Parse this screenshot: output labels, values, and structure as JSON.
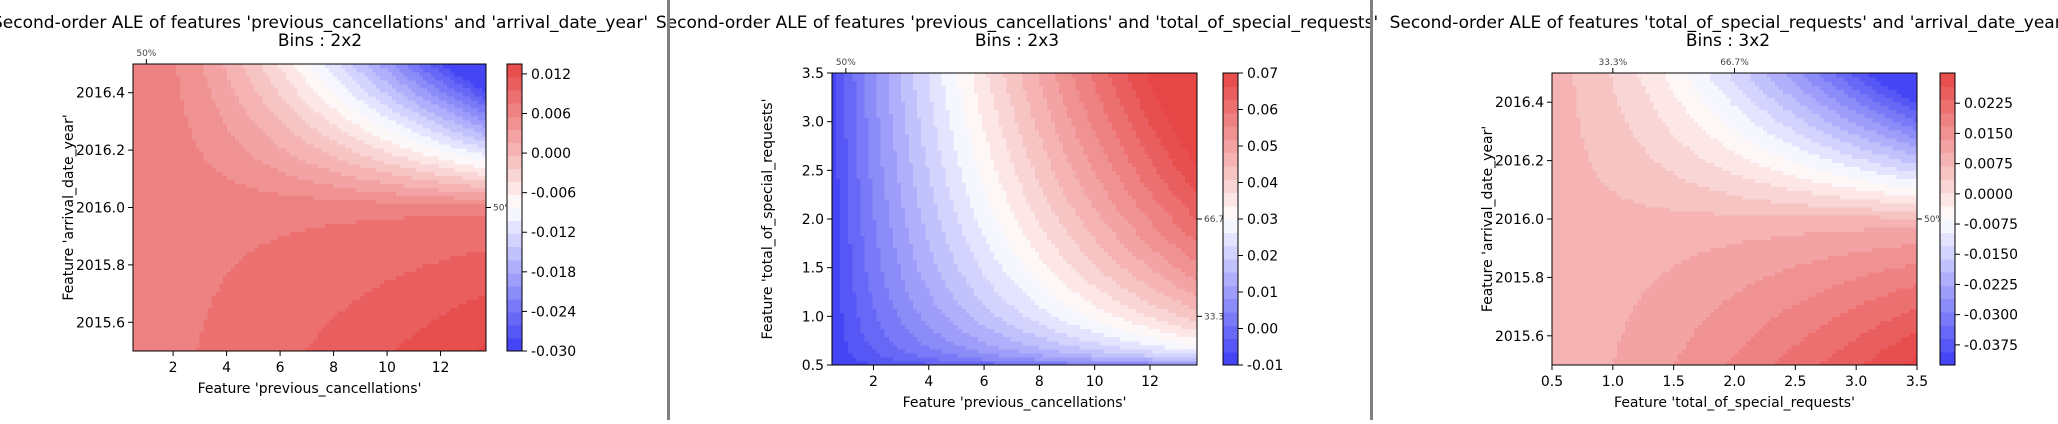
{
  "chart_data": [
    {
      "type": "heatmap",
      "title": "Second-order ALE of features 'previous_cancellations' and 'arrival_date_year'",
      "subtitle": "Bins : 2x2",
      "xlabel": "Feature 'previous_cancellations'",
      "ylabel": "Feature 'arrival_date_year'",
      "xlim": [
        0.5,
        13.7
      ],
      "ylim": [
        2015.5,
        2016.5
      ],
      "xticks": [
        "2",
        "4",
        "6",
        "8",
        "10",
        "12"
      ],
      "xtick_values": [
        2,
        4,
        6,
        8,
        10,
        12
      ],
      "yticks": [
        "2015.6",
        "2015.8",
        "2016.0",
        "2016.2",
        "2016.4"
      ],
      "ytick_values": [
        2015.6,
        2015.8,
        2016.0,
        2016.2,
        2016.4
      ],
      "colorbar": {
        "min": -0.03,
        "max": 0.0135,
        "ticks": [
          "-0.030",
          "-0.024",
          "-0.018",
          "-0.012",
          "-0.006",
          "0.000",
          "0.006",
          "0.012"
        ],
        "tick_values": [
          -0.03,
          -0.024,
          -0.018,
          -0.012,
          -0.006,
          0.0,
          0.006,
          0.012
        ]
      },
      "top_quantiles": [
        {
          "value": 1,
          "label": "50%"
        }
      ],
      "right_quantiles": [
        {
          "value": 2016.0,
          "label": "50%"
        }
      ],
      "grid": false,
      "cmap": "bwr",
      "colors": {
        "low": "#3c3cf5",
        "mid": "#ffffff",
        "high": "#e64646"
      },
      "surface": {
        "kind": "corner",
        "x0": 1,
        "y0": 2016.0,
        "x1": 13.7,
        "y1": 2016.5,
        "x2": 2015.5,
        "cross": -0.03,
        "hi": 0.0135,
        "base": 0.007,
        "knee": 3.0,
        "levels": 22
      }
    },
    {
      "type": "heatmap",
      "title": "Second-order ALE of features 'previous_cancellations' and 'total_of_special_requests'",
      "subtitle": "Bins : 2x3",
      "xlabel": "Feature 'previous_cancellations'",
      "ylabel": "Feature 'total_of_special_requests'",
      "xlim": [
        0.5,
        13.7
      ],
      "ylim": [
        0.5,
        3.5
      ],
      "xticks": [
        "2",
        "4",
        "6",
        "8",
        "10",
        "12"
      ],
      "xtick_values": [
        2,
        4,
        6,
        8,
        10,
        12
      ],
      "yticks": [
        "0.5",
        "1.0",
        "1.5",
        "2.0",
        "2.5",
        "3.0",
        "3.5"
      ],
      "ytick_values": [
        0.5,
        1.0,
        1.5,
        2.0,
        2.5,
        3.0,
        3.5
      ],
      "colorbar": {
        "min": -0.01,
        "max": 0.07,
        "ticks": [
          "-0.01",
          "0.00",
          "0.01",
          "0.02",
          "0.03",
          "0.04",
          "0.05",
          "0.06",
          "0.07"
        ],
        "tick_values": [
          -0.01,
          0.0,
          0.01,
          0.02,
          0.03,
          0.04,
          0.05,
          0.06,
          0.07
        ]
      },
      "top_quantiles": [
        {
          "value": 1,
          "label": "50%"
        }
      ],
      "right_quantiles": [
        {
          "value": 1.0,
          "label": "33.3%"
        },
        {
          "value": 2.0,
          "label": "66.7%"
        }
      ],
      "grid": false,
      "cmap": "bwr",
      "colors": {
        "low": "#3c3cf5",
        "mid": "#ffffff",
        "high": "#e64646"
      },
      "surface": {
        "kind": "hyperbolic",
        "min": -0.01,
        "max": 0.07,
        "levels": 22
      }
    },
    {
      "type": "heatmap",
      "title": "Second-order ALE of features 'total_of_special_requests' and 'arrival_date_year'",
      "subtitle": "Bins : 3x2",
      "xlabel": "Feature 'total_of_special_requests'",
      "ylabel": "Feature 'arrival_date_year'",
      "xlim": [
        0.5,
        3.5
      ],
      "ylim": [
        2015.5,
        2016.5
      ],
      "xticks": [
        "0.5",
        "1.0",
        "1.5",
        "2.0",
        "2.5",
        "3.0",
        "3.5"
      ],
      "xtick_values": [
        0.5,
        1.0,
        1.5,
        2.0,
        2.5,
        3.0,
        3.5
      ],
      "yticks": [
        "2015.6",
        "2015.8",
        "2016.0",
        "2016.2",
        "2016.4"
      ],
      "ytick_values": [
        2015.6,
        2015.8,
        2016.0,
        2016.2,
        2016.4
      ],
      "colorbar": {
        "min": -0.0425,
        "max": 0.03,
        "ticks": [
          "-0.0375",
          "-0.0300",
          "-0.0225",
          "-0.0150",
          "-0.0075",
          "0.0000",
          "0.0075",
          "0.0150",
          "0.0225"
        ],
        "tick_values": [
          -0.0375,
          -0.03,
          -0.0225,
          -0.015,
          -0.0075,
          0.0,
          0.0075,
          0.015,
          0.0225
        ]
      },
      "top_quantiles": [
        {
          "value": 1.0,
          "label": "33.3%"
        },
        {
          "value": 2.0,
          "label": "66.7%"
        }
      ],
      "right_quantiles": [
        {
          "value": 2016.0,
          "label": "50%"
        }
      ],
      "grid": false,
      "cmap": "bwr",
      "colors": {
        "low": "#3c3cf5",
        "mid": "#ffffff",
        "high": "#e64646"
      },
      "surface": {
        "kind": "corner",
        "x0": 0.5,
        "y0": 2016.0,
        "x1": 3.5,
        "y1": 2016.5,
        "x2": 2015.5,
        "cross": -0.0425,
        "hi": 0.03,
        "base": 0.008,
        "knee": 0.25,
        "levels": 22
      }
    }
  ]
}
